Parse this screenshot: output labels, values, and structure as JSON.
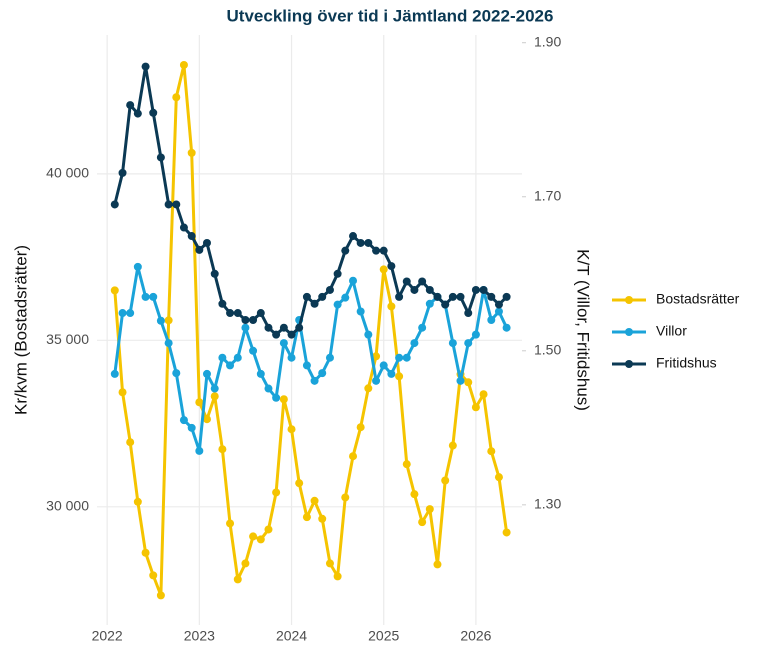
{
  "chart_data": {
    "type": "line",
    "title": "Utveckling över tid i Jämtland 2022-2026",
    "y_label": "Kr/kvm (Bostadsrätter)",
    "y2_label": "K/T (Villor, Fritidshus)",
    "x": [
      2022.083,
      2022.167,
      2022.25,
      2022.333,
      2022.417,
      2022.5,
      2022.583,
      2022.667,
      2022.75,
      2022.833,
      2022.917,
      2023,
      2023.083,
      2023.167,
      2023.25,
      2023.333,
      2023.417,
      2023.5,
      2023.583,
      2023.667,
      2023.75,
      2023.833,
      2023.917,
      2024,
      2024.083,
      2024.167,
      2024.25,
      2024.333,
      2024.417,
      2024.5,
      2024.583,
      2024.667,
      2024.75,
      2024.833,
      2024.917,
      2025,
      2025.083,
      2025.167,
      2025.25,
      2025.333,
      2025.417,
      2025.5,
      2025.583,
      2025.667,
      2025.75,
      2025.833,
      2025.917,
      2026,
      2026.083,
      2026.167,
      2026.25,
      2026.333
    ],
    "series": [
      {
        "name": "Bostadsrätter",
        "color": "#f5c400",
        "values": [
          36500,
          33440,
          31940,
          30150,
          28620,
          27940,
          27340,
          35600,
          42300,
          43270,
          40630,
          33140,
          32630,
          33320,
          31730,
          29500,
          27820,
          28300,
          29110,
          29020,
          29320,
          30430,
          33230,
          32330,
          30710,
          29690,
          30180,
          29640,
          28300,
          27910,
          30280,
          31520,
          32390,
          33560,
          34520,
          37130,
          36020,
          33920,
          31280,
          30380,
          29540,
          29930,
          28270,
          30790,
          31840,
          33980,
          33740,
          32990,
          33380,
          31670,
          30890,
          29230
        ]
      },
      {
        "name": "Villor",
        "color": "#1aa3d9",
        "axis": "y2",
        "values": [
          1.47,
          1.549,
          1.549,
          1.609,
          1.57,
          1.57,
          1.539,
          1.51,
          1.471,
          1.41,
          1.4,
          1.37,
          1.47,
          1.451,
          1.491,
          1.481,
          1.491,
          1.53,
          1.5,
          1.47,
          1.451,
          1.439,
          1.51,
          1.491,
          1.54,
          1.481,
          1.461,
          1.471,
          1.491,
          1.56,
          1.569,
          1.591,
          1.551,
          1.521,
          1.461,
          1.481,
          1.47,
          1.491,
          1.491,
          1.51,
          1.53,
          1.561,
          1.57,
          1.56,
          1.51,
          1.461,
          1.51,
          1.521,
          1.579,
          1.54,
          1.551,
          1.53
        ]
      },
      {
        "name": "Fritidshus",
        "color": "#0b3954",
        "axis": "y2",
        "values": [
          1.69,
          1.731,
          1.819,
          1.808,
          1.869,
          1.809,
          1.751,
          1.69,
          1.69,
          1.66,
          1.649,
          1.631,
          1.64,
          1.6,
          1.561,
          1.549,
          1.549,
          1.54,
          1.54,
          1.549,
          1.53,
          1.521,
          1.53,
          1.521,
          1.53,
          1.57,
          1.561,
          1.57,
          1.579,
          1.6,
          1.63,
          1.649,
          1.64,
          1.64,
          1.63,
          1.63,
          1.61,
          1.57,
          1.59,
          1.579,
          1.59,
          1.579,
          1.57,
          1.56,
          1.57,
          1.57,
          1.549,
          1.579,
          1.579,
          1.57,
          1.56,
          1.57
        ]
      }
    ],
    "xlim": [
      2021.89,
      2026.5
    ],
    "xticks": [
      2022,
      2023,
      2024,
      2025,
      2026
    ],
    "ylim": [
      26450,
      44170
    ],
    "yticks": [
      {
        "value": 30000,
        "label": "30 000"
      },
      {
        "value": 35000,
        "label": "35 000"
      },
      {
        "value": 40000,
        "label": "40 000"
      }
    ],
    "y2lim": [
      1.144,
      1.91
    ],
    "y2ticks": [
      {
        "value": 1.3,
        "label": "1.30"
      },
      {
        "value": 1.5,
        "label": "1.50"
      },
      {
        "value": 1.7,
        "label": "1.70"
      },
      {
        "value": 1.9,
        "label": "1.90"
      }
    ],
    "grid": true,
    "legend": "right"
  }
}
